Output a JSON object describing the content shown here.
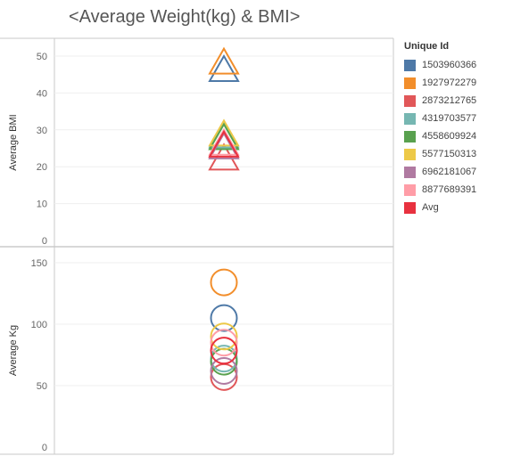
{
  "chart_data": {
    "type": "scatter",
    "title": "<Average Weight(kg) & BMI>",
    "legend_title": "Unique Id",
    "legend_position": "right",
    "series": [
      {
        "name": "1503960366",
        "color": "#4E79A7",
        "bmi": 45.5,
        "kg": 105.0
      },
      {
        "name": "1927972279",
        "color": "#F28E2B",
        "bmi": 47.5,
        "kg": 134.0
      },
      {
        "name": "2873212765",
        "color": "#E15759",
        "bmi": 21.5,
        "kg": 57.0
      },
      {
        "name": "4319703577",
        "color": "#76B7B2",
        "bmi": 27.5,
        "kg": 72.0
      },
      {
        "name": "4558609924",
        "color": "#59A14F",
        "bmi": 27.0,
        "kg": 69.5
      },
      {
        "name": "5577150313",
        "color": "#EDC948",
        "bmi": 28.0,
        "kg": 90.0
      },
      {
        "name": "6962181067",
        "color": "#B07AA1",
        "bmi": 24.5,
        "kg": 62.0
      },
      {
        "name": "8877689391",
        "color": "#FF9DA7",
        "bmi": 25.5,
        "kg": 85.0
      },
      {
        "name": "Avg",
        "color": "#E8313F",
        "bmi": 25.0,
        "kg": 78.5
      }
    ],
    "panels": [
      {
        "key": "bmi",
        "ylabel": "Average BMI",
        "ylim": [
          0,
          53
        ],
        "ticks": [
          0,
          10,
          20,
          30,
          40,
          50
        ],
        "marker": "triangle"
      },
      {
        "key": "kg",
        "ylabel": "Average Kg",
        "ylim": [
          0,
          155
        ],
        "ticks": [
          0,
          50,
          100,
          150
        ],
        "marker": "circle"
      }
    ],
    "grid": true
  }
}
